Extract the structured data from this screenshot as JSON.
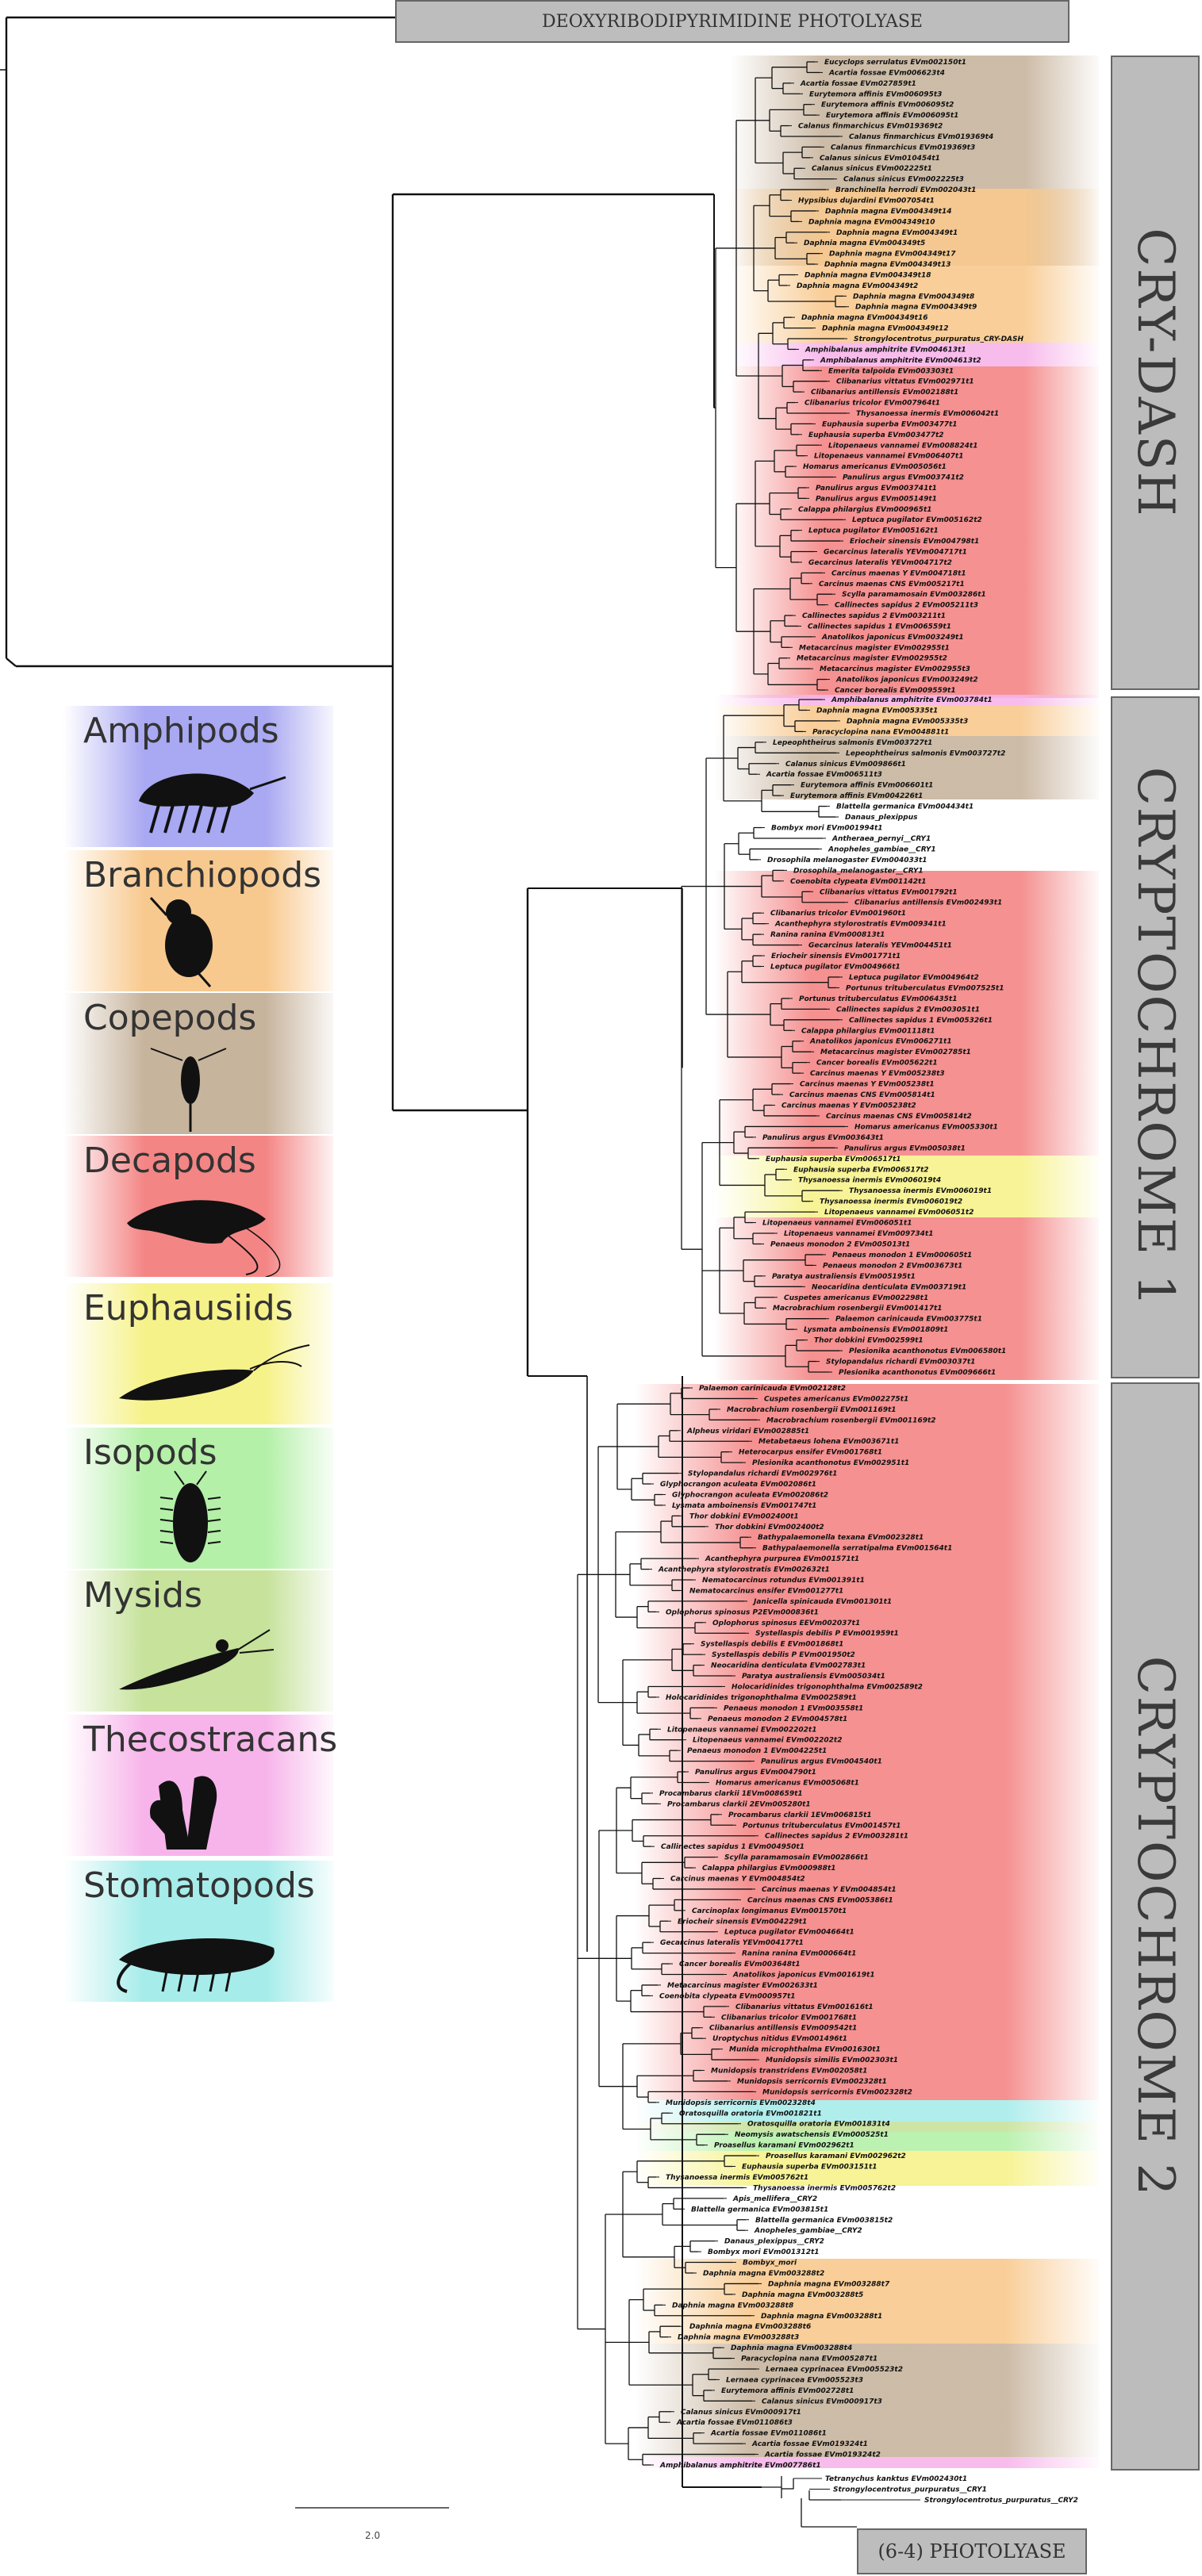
{
  "headers": {
    "top": "DEOXYRIBODIPYRIMIDINE PHOTOLYASE",
    "bottom": "(6-4) PHOTOLYASE"
  },
  "clades": [
    {
      "label": "CRY-DASH",
      "color": "#bdbdbd"
    },
    {
      "label": "CRYPTOCHROME 1",
      "color": "#bdbdbd"
    },
    {
      "label": "CRYPTOCHROME 2",
      "color": "#bdbdbd"
    }
  ],
  "legend": [
    {
      "label": "Amphipods",
      "color": "#a9a8f2",
      "icon": "amphipod-icon"
    },
    {
      "label": "Branchiopods",
      "color": "#f8c98e",
      "icon": "branchiopod-icon"
    },
    {
      "label": "Copepods",
      "color": "#c7b49d",
      "icon": "copepod-icon"
    },
    {
      "label": "Decapods",
      "color": "#f48585",
      "icon": "decapod-icon"
    },
    {
      "label": "Euphausiids",
      "color": "#f6f28a",
      "icon": "euphausiid-icon"
    },
    {
      "label": "Isopods",
      "color": "#b4f0a8",
      "icon": "isopod-icon"
    },
    {
      "label": "Mysids",
      "color": "#c6e29b",
      "icon": "mysid-icon"
    },
    {
      "label": "Thecostracans",
      "color": "#f7b4ea",
      "icon": "thecostracan-icon"
    },
    {
      "label": "Stomatopods",
      "color": "#a6ecea",
      "icon": "stomatopod-icon"
    }
  ],
  "scale_bar": {
    "label": "2.0"
  },
  "bands": {
    "crydash": [
      {
        "group": "Copepods",
        "color": "#c7b49d"
      },
      {
        "group": "Branchiopods",
        "color": "#f8c98e"
      },
      {
        "group": "Thecostracans",
        "color": "#f7b4ea"
      },
      {
        "group": "Decapods",
        "color": "#f48585"
      }
    ],
    "cry1": [
      {
        "group": "Thecostracans",
        "color": "#f7b4ea"
      },
      {
        "group": "Branchiopods",
        "color": "#f8c98e"
      },
      {
        "group": "Copepods",
        "color": "#c7b49d"
      },
      {
        "group": "Decapods",
        "color": "#f48585"
      },
      {
        "group": "Euphausiids",
        "color": "#f6f28a"
      },
      {
        "group": "Decapods",
        "color": "#f48585"
      }
    ],
    "cry2": [
      {
        "group": "Decapods",
        "color": "#f48585"
      },
      {
        "group": "Stomatopods",
        "color": "#a6ecea"
      },
      {
        "group": "Mysids",
        "color": "#c6e29b"
      },
      {
        "group": "Isopods",
        "color": "#b4f0a8"
      },
      {
        "group": "Euphausiids",
        "color": "#f6f28a"
      },
      {
        "group": "Branchiopods",
        "color": "#f8c98e"
      },
      {
        "group": "Copepods",
        "color": "#c7b49d"
      },
      {
        "group": "Thecostracans",
        "color": "#f7b4ea"
      }
    ]
  },
  "taxa": {
    "crydash": [
      "Eucyclops serrulatus EVm002150t1",
      "Acartia fossae EVm006623t4",
      "Acartia fossae EVm027859t1",
      "Eurytemora affinis EVm006095t3",
      "Eurytemora affinis EVm006095t2",
      "Eurytemora affinis EVm006095t1",
      "Calanus finmarchicus EVm019369t2",
      "Calanus finmarchicus EVm019369t4",
      "Calanus finmarchicus EVm019369t3",
      "Calanus sinicus EVm010454t1",
      "Calanus sinicus EVm002225t1",
      "Calanus sinicus EVm002225t3",
      "Branchinella herrodi EVm002043t1",
      "Hypsibius dujardini EVm007054t1",
      "Daphnia magna EVm004349t14",
      "Daphnia magna EVm004349t10",
      "Daphnia magna EVm004349t1",
      "Daphnia magna EVm004349t5",
      "Daphnia magna EVm004349t17",
      "Daphnia magna EVm004349t13",
      "Daphnia magna EVm004349t18",
      "Daphnia magna EVm004349t2",
      "Daphnia magna EVm004349t8",
      "Daphnia magna EVm004349t9",
      "Daphnia magna EVm004349t16",
      "Daphnia magna EVm004349t12",
      "Strongylocentrotus_purpuratus_CRY-DASH",
      "Amphibalanus amphitrite EVm004613t1",
      "Amphibalanus amphitrite EVm004613t2",
      "Emerita talpoida EVm003303t1",
      "Clibanarius vittatus EVm002971t1",
      "Clibanarius antillensis EVm002188t1",
      "Clibanarius tricolor EVm007964t1",
      "Thysanoessa inermis EVm006042t1",
      "Euphausia superba EVm003477t1",
      "Euphausia superba EVm003477t2",
      "Litopenaeus vannamei EVm008824t1",
      "Litopenaeus vannamei EVm006407t1",
      "Homarus americanus EVm005056t1",
      "Panulirus argus EVm003741t2",
      "Panulirus argus EVm003741t1",
      "Panulirus argus EVm005149t1",
      "Calappa philargius EVm000965t1",
      "Leptuca pugilator EVm005162t2",
      "Leptuca pugilator EVm005162t1",
      "Eriocheir sinensis EVm004798t1",
      "Gecarcinus lateralis YEVm004717t1",
      "Gecarcinus lateralis YEVm004717t2",
      "Carcinus maenas Y EVm004718t1",
      "Carcinus maenas CNS EVm005217t1",
      "Scylla paramamosain EVm003286t1",
      "Callinectes sapidus 2 EVm005211t3",
      "Callinectes sapidus 2 EVm003211t1",
      "Callinectes sapidus 1 EVm006559t1",
      "Anatolikos japonicus EVm003249t1",
      "Metacarcinus magister EVm002955t1",
      "Metacarcinus magister EVm002955t2",
      "Metacarcinus magister EVm002955t3",
      "Anatolikos japonicus EVm003249t2",
      "Cancer borealis EVm009559t1"
    ],
    "cry1": [
      "Amphibalanus amphitrite EVm003784t1",
      "Daphnia magna EVm005335t1",
      "Daphnia magna EVm005335t3",
      "Paracyclopina nana EVm004881t1",
      "Lepeophtheirus salmonis EVm003727t1",
      "Lepeophtheirus salmonis EVm003727t2",
      "Calanus sinicus EVm009866t1",
      "Acartia fossae EVm006511t3",
      "Eurytemora affinis EVm006601t1",
      "Eurytemora affinis EVm004226t1",
      "Blattella germanica EVm004434t1",
      "Danaus_plexippus",
      "Bombyx mori EVm001994t1",
      "Antheraea_pernyi__CRY1",
      "Anopheles_gambiae__CRY1",
      "Drosophila melanogaster EVm004033t1",
      "Drosophila_melanogaster__CRY1",
      "Coenobita clypeata EVm001142t1",
      "Clibanarius vittatus EVm001792t1",
      "Clibanarius antillensis EVm002493t1",
      "Clibanarius tricolor EVm001960t1",
      "Acanthephyra stylorostratis EVm009341t1",
      "Ranina ranina EVm000813t1",
      "Gecarcinus lateralis YEVm004451t1",
      "Eriocheir sinensis EVm001771t1",
      "Leptuca pugilator EVm004966t1",
      "Leptuca pugilator EVm004964t2",
      "Portunus trituberculatus EVm007525t1",
      "Portunus trituberculatus EVm006435t1",
      "Callinectes sapidus 2 EVm003051t1",
      "Callinectes sapidus 1 EVm005326t1",
      "Calappa philargius EVm001118t1",
      "Anatolikos japonicus EVm006271t1",
      "Metacarcinus magister EVm002785t1",
      "Cancer borealis EVm005622t1",
      "Carcinus maenas Y EVm005238t3",
      "Carcinus maenas Y EVm005238t1",
      "Carcinus maenas CNS EVm005814t1",
      "Carcinus maenas Y EVm005238t2",
      "Carcinus maenas CNS EVm005814t2",
      "Homarus americanus EVm005330t1",
      "Panulirus argus EVm003643t1",
      "Panulirus argus EVm005038t1",
      "Euphausia superba EVm006517t1",
      "Euphausia superba EVm006517t2",
      "Thysanoessa inermis EVm006019t4",
      "Thysanoessa inermis EVm006019t1",
      "Thysanoessa inermis EVm006019t2",
      "Litopenaeus vannamei EVm006051t2",
      "Litopenaeus vannamei EVm006051t1",
      "Litopenaeus vannamei EVm009734t1",
      "Penaeus monodon 2 EVm005013t1",
      "Penaeus monodon 1 EVm000605t1",
      "Penaeus monodon 2 EVm003673t1",
      "Paratya australiensis EVm005195t1",
      "Neocaridina denticulata EVm003719t1",
      "Cuspetes americanus EVm002298t1",
      "Macrobrachium rosenbergii EVm001417t1",
      "Palaemon carinicauda EVm003775t1",
      "Lysmata amboinensis EVm001809t1",
      "Thor dobkini EVm002599t1",
      "Plesionika acanthonotus EVm006580t1",
      "Stylopandalus richardi EVm003037t1",
      "Plesionika acanthonotus EVm009666t1"
    ],
    "cry2": [
      "Palaemon carinicauda EVm002128t2",
      "Cuspetes americanus EVm002275t1",
      "Macrobrachium rosenbergii EVm001169t1",
      "Macrobrachium rosenbergii EVm001169t2",
      "Alpheus viridari EVm002885t1",
      "Metabetaeus lohena EVm003671t1",
      "Heterocarpus ensifer EVm001768t1",
      "Plesionika acanthonotus EVm002951t1",
      "Stylopandalus richardi EVm002976t1",
      "Glyphocrangon aculeata EVm002086t1",
      "Glyphocrangon aculeata EVm002086t2",
      "Lysmata amboinensis EVm001747t1",
      "Thor dobkini EVm002400t1",
      "Thor dobkini EVm002400t2",
      "Bathypalaemonella texana EVm002328t1",
      "Bathypalaemonella serratipalma EVm001564t1",
      "Acanthephyra purpurea EVm001571t1",
      "Acanthephyra stylorostratis EVm002632t1",
      "Nematocarcinus rotundus EVm001391t1",
      "Nematocarcinus ensifer EVm001277t1",
      "Janicella spinicauda EVm001301t1",
      "Oplophorus spinosus P2EVm000836t1",
      "Oplophorus spinosus EEVm002037t1",
      "Systellaspis debilis P EVm001959t1",
      "Systellaspis debilis E EVm001868t1",
      "Systellaspis debilis P EVm001950t2",
      "Neocaridina denticulata EVm002783t1",
      "Paratya australiensis EVm005034t1",
      "Holocaridinides trigonophthalma EVm002589t2",
      "Holocaridinides trigonophthalma EVm002589t1",
      "Penaeus monodon 1 EVm003558t1",
      "Penaeus monodon 2 EVm004578t1",
      "Litopenaeus vannamei EVm002202t1",
      "Litopenaeus vannamei EVm002202t2",
      "Penaeus monodon 1 EVm004225t1",
      "Panulirus argus EVm004540t1",
      "Panulirus argus EVm004790t1",
      "Homarus americanus EVm005068t1",
      "Procambarus clarkii 1EVm008659t1",
      "Procambarus clarkii 2EVm005280t1",
      "Procambarus clarkii 1EVm006815t1",
      "Portunus trituberculatus EVm001457t1",
      "Callinectes sapidus 2 EVm003281t1",
      "Callinectes sapidus 1 EVm004950t1",
      "Scylla paramamosain EVm002866t1",
      "Calappa philargius EVm000988t1",
      "Carcinus maenas Y EVm004854t2",
      "Carcinus maenas Y EVm004854t1",
      "Carcinus maenas CNS EVm005386t1",
      "Carcinoplax longimanus EVm001570t1",
      "Eriocheir sinensis EVm004229t1",
      "Leptuca pugilator EVm004664t1",
      "Gecarcinus lateralis YEVm004177t1",
      "Ranina ranina EVm000664t1",
      "Cancer borealis EVm003648t1",
      "Anatolikos japonicus EVm001619t1",
      "Metacarcinus magister EVm002633t1",
      "Coenobita clypeata EVm000957t1",
      "Clibanarius vittatus EVm001616t1",
      "Clibanarius tricolor EVm001768t1",
      "Clibanarius antillensis EVm009542t1",
      "Uroptychus nitidus EVm001496t1",
      "Munida microphthalma EVm001630t1",
      "Munidopsis similis EVm002303t1",
      "Munidopsis transtridens EVm002058t1",
      "Munidopsis serricornis EVm002328t1",
      "Munidopsis serricornis EVm002328t2",
      "Munidopsis serricornis EVm002328t4",
      "Oratosquilla oratoria EVm001821t1",
      "Oratosquilla oratoria EVm001831t4",
      "Neomysis awatschensis EVm000525t1",
      "Proasellus karamani EVm002962t1",
      "Proasellus karamani EVm002962t2",
      "Euphausia superba EVm003151t1",
      "Thysanoessa inermis EVm005762t1",
      "Thysanoessa inermis EVm005762t2",
      "Apis_mellifera__CRY2",
      "Blattella germanica EVm003815t1",
      "Blattella germanica EVm003815t2",
      "Anopheles_gambiae__CRY2",
      "Danaus_plexippus__CRY2",
      "Bombyx mori EVm001312t1",
      "Bombyx_mori",
      "Daphnia magna EVm003288t2",
      "Daphnia magna EVm003288t7",
      "Daphnia magna EVm003288t5",
      "Daphnia magna EVm003288t8",
      "Daphnia magna EVm003288t1",
      "Daphnia magna EVm003288t6",
      "Daphnia magna EVm003288t3",
      "Daphnia magna EVm003288t4",
      "Paracyclopina nana EVm005287t1",
      "Lernaea cyprinacea EVm005523t2",
      "Lernaea cyprinacea EVm005523t3",
      "Eurytemora affinis EVm002728t1",
      "Calanus sinicus EVm000917t3",
      "Calanus sinicus EVm000917t1",
      "Acartia fossae EVm011086t3",
      "Acartia fossae EVm011086t1",
      "Acartia fossae EVm019324t1",
      "Acartia fossae EVm019324t2",
      "Amphibalanus amphitrite EVm007786t1"
    ],
    "outgroup": [
      "Tetranychus kanktus EVm002430t1",
      "Strongylocentrotus_purpuratus__CRY1",
      "Strongylocentrotus_purpuratus__CRY2"
    ]
  }
}
